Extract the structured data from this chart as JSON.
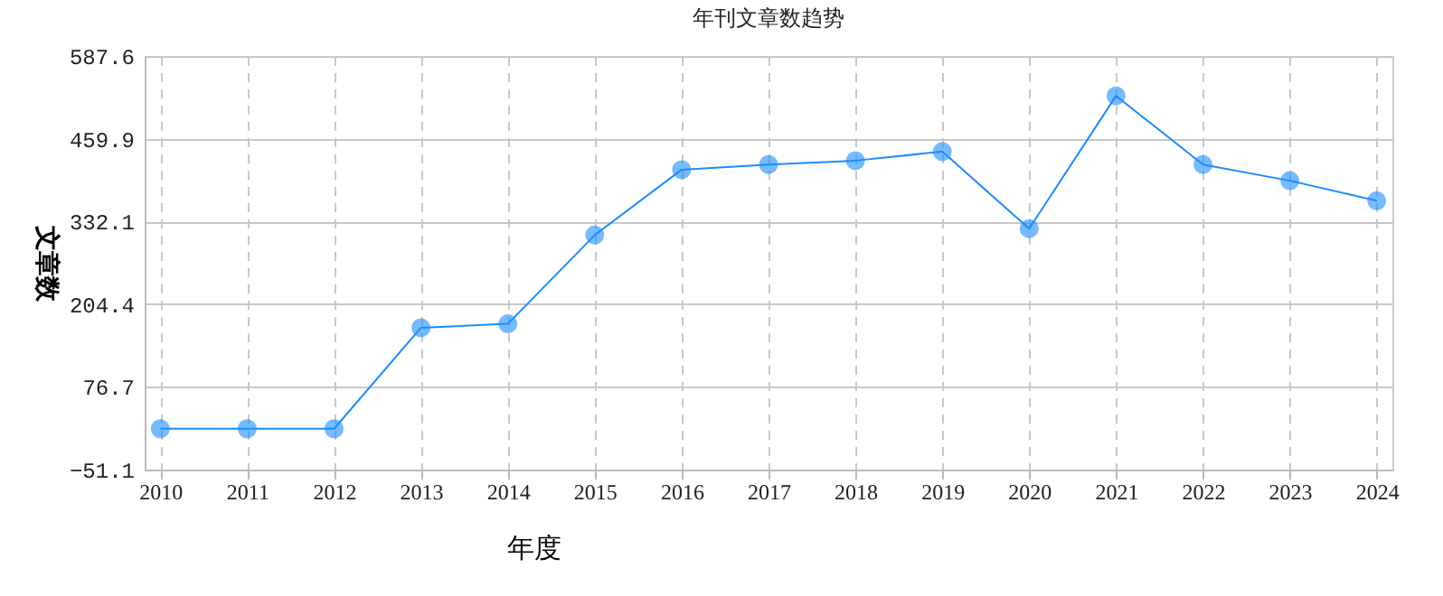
{
  "chart_data": {
    "type": "line",
    "title": "年刊文章数趋势",
    "xlabel": "年度",
    "ylabel": "文章数",
    "categories": [
      "2010",
      "2011",
      "2012",
      "2013",
      "2014",
      "2015",
      "2016",
      "2017",
      "2018",
      "2019",
      "2020",
      "2021",
      "2022",
      "2023",
      "2024"
    ],
    "series": [
      {
        "color": "#1a8cff",
        "values": [
          12,
          12,
          12,
          168,
          174,
          311,
          412,
          420,
          426,
          440,
          321,
          526,
          420,
          395,
          364
        ]
      }
    ],
    "ylim": [
      -51.1,
      587.6
    ],
    "yticks": [
      -51.1,
      76.7,
      204.4,
      332.1,
      459.9,
      587.6
    ],
    "grid": true,
    "marker": "circle",
    "line_style": "solid"
  }
}
